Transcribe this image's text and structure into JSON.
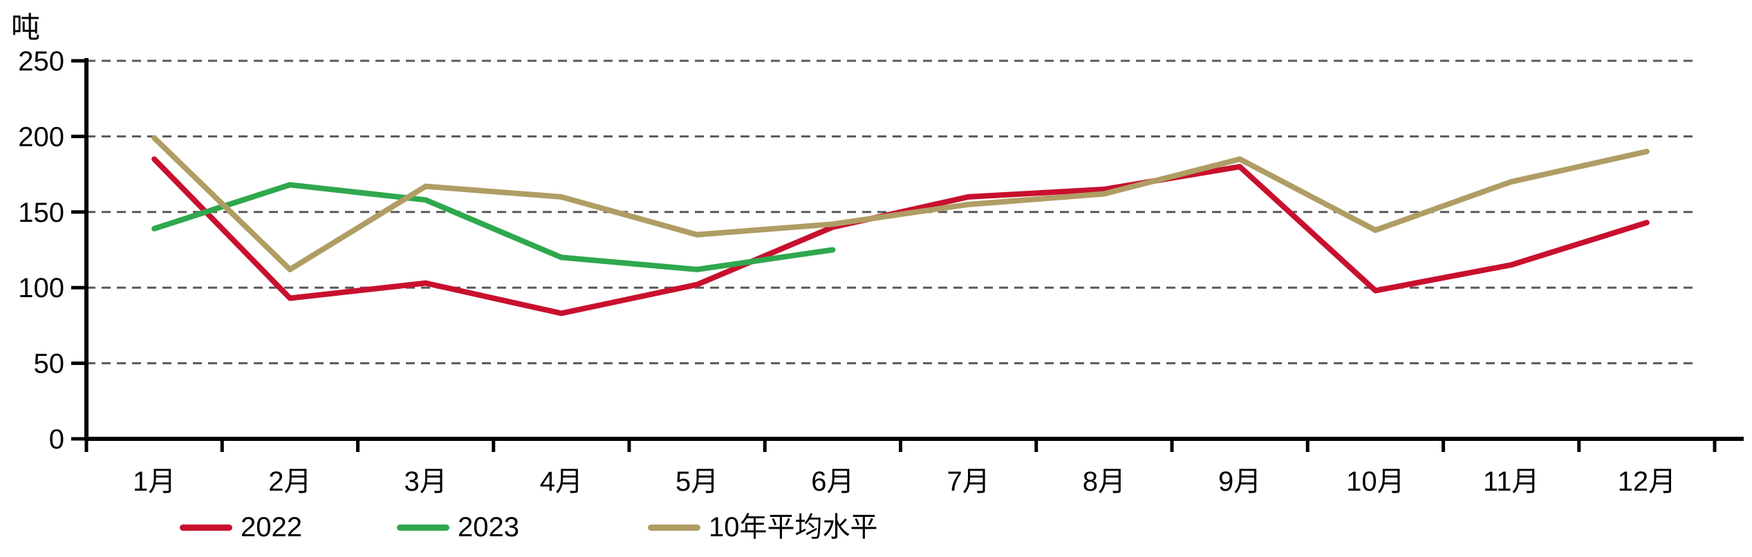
{
  "chart_data": {
    "type": "line",
    "unit_label": "吨",
    "categories": [
      "1月",
      "2月",
      "3月",
      "4月",
      "5月",
      "6月",
      "7月",
      "8月",
      "9月",
      "10月",
      "11月",
      "12月"
    ],
    "series": [
      {
        "name": "2022",
        "color_key": "red",
        "values": [
          185,
          93,
          103,
          83,
          102,
          140,
          160,
          165,
          180,
          98,
          115,
          143
        ]
      },
      {
        "name": "2023",
        "color_key": "green",
        "values": [
          139,
          168,
          158,
          120,
          112,
          125,
          null,
          null,
          null,
          null,
          null,
          null
        ]
      },
      {
        "name": "10年平均水平",
        "color_key": "tan",
        "values": [
          199,
          112,
          167,
          160,
          135,
          142,
          155,
          162,
          185,
          138,
          170,
          190
        ]
      }
    ],
    "y_ticks": [
      0,
      50,
      100,
      150,
      200,
      250
    ],
    "ylim": [
      0,
      250
    ],
    "xlabel": "",
    "ylabel": "吨",
    "grid": "horizontal-dashed",
    "legend_position": "bottom-left"
  },
  "colors": {
    "red": "#C8102E",
    "green": "#2FA84D",
    "tan": "#AF9D64",
    "grid": "#595959",
    "axis": "#000000",
    "text": "#000000"
  },
  "legend": {
    "items": [
      {
        "label": "2022"
      },
      {
        "label": "2023"
      },
      {
        "label": "10年平均水平"
      }
    ]
  }
}
